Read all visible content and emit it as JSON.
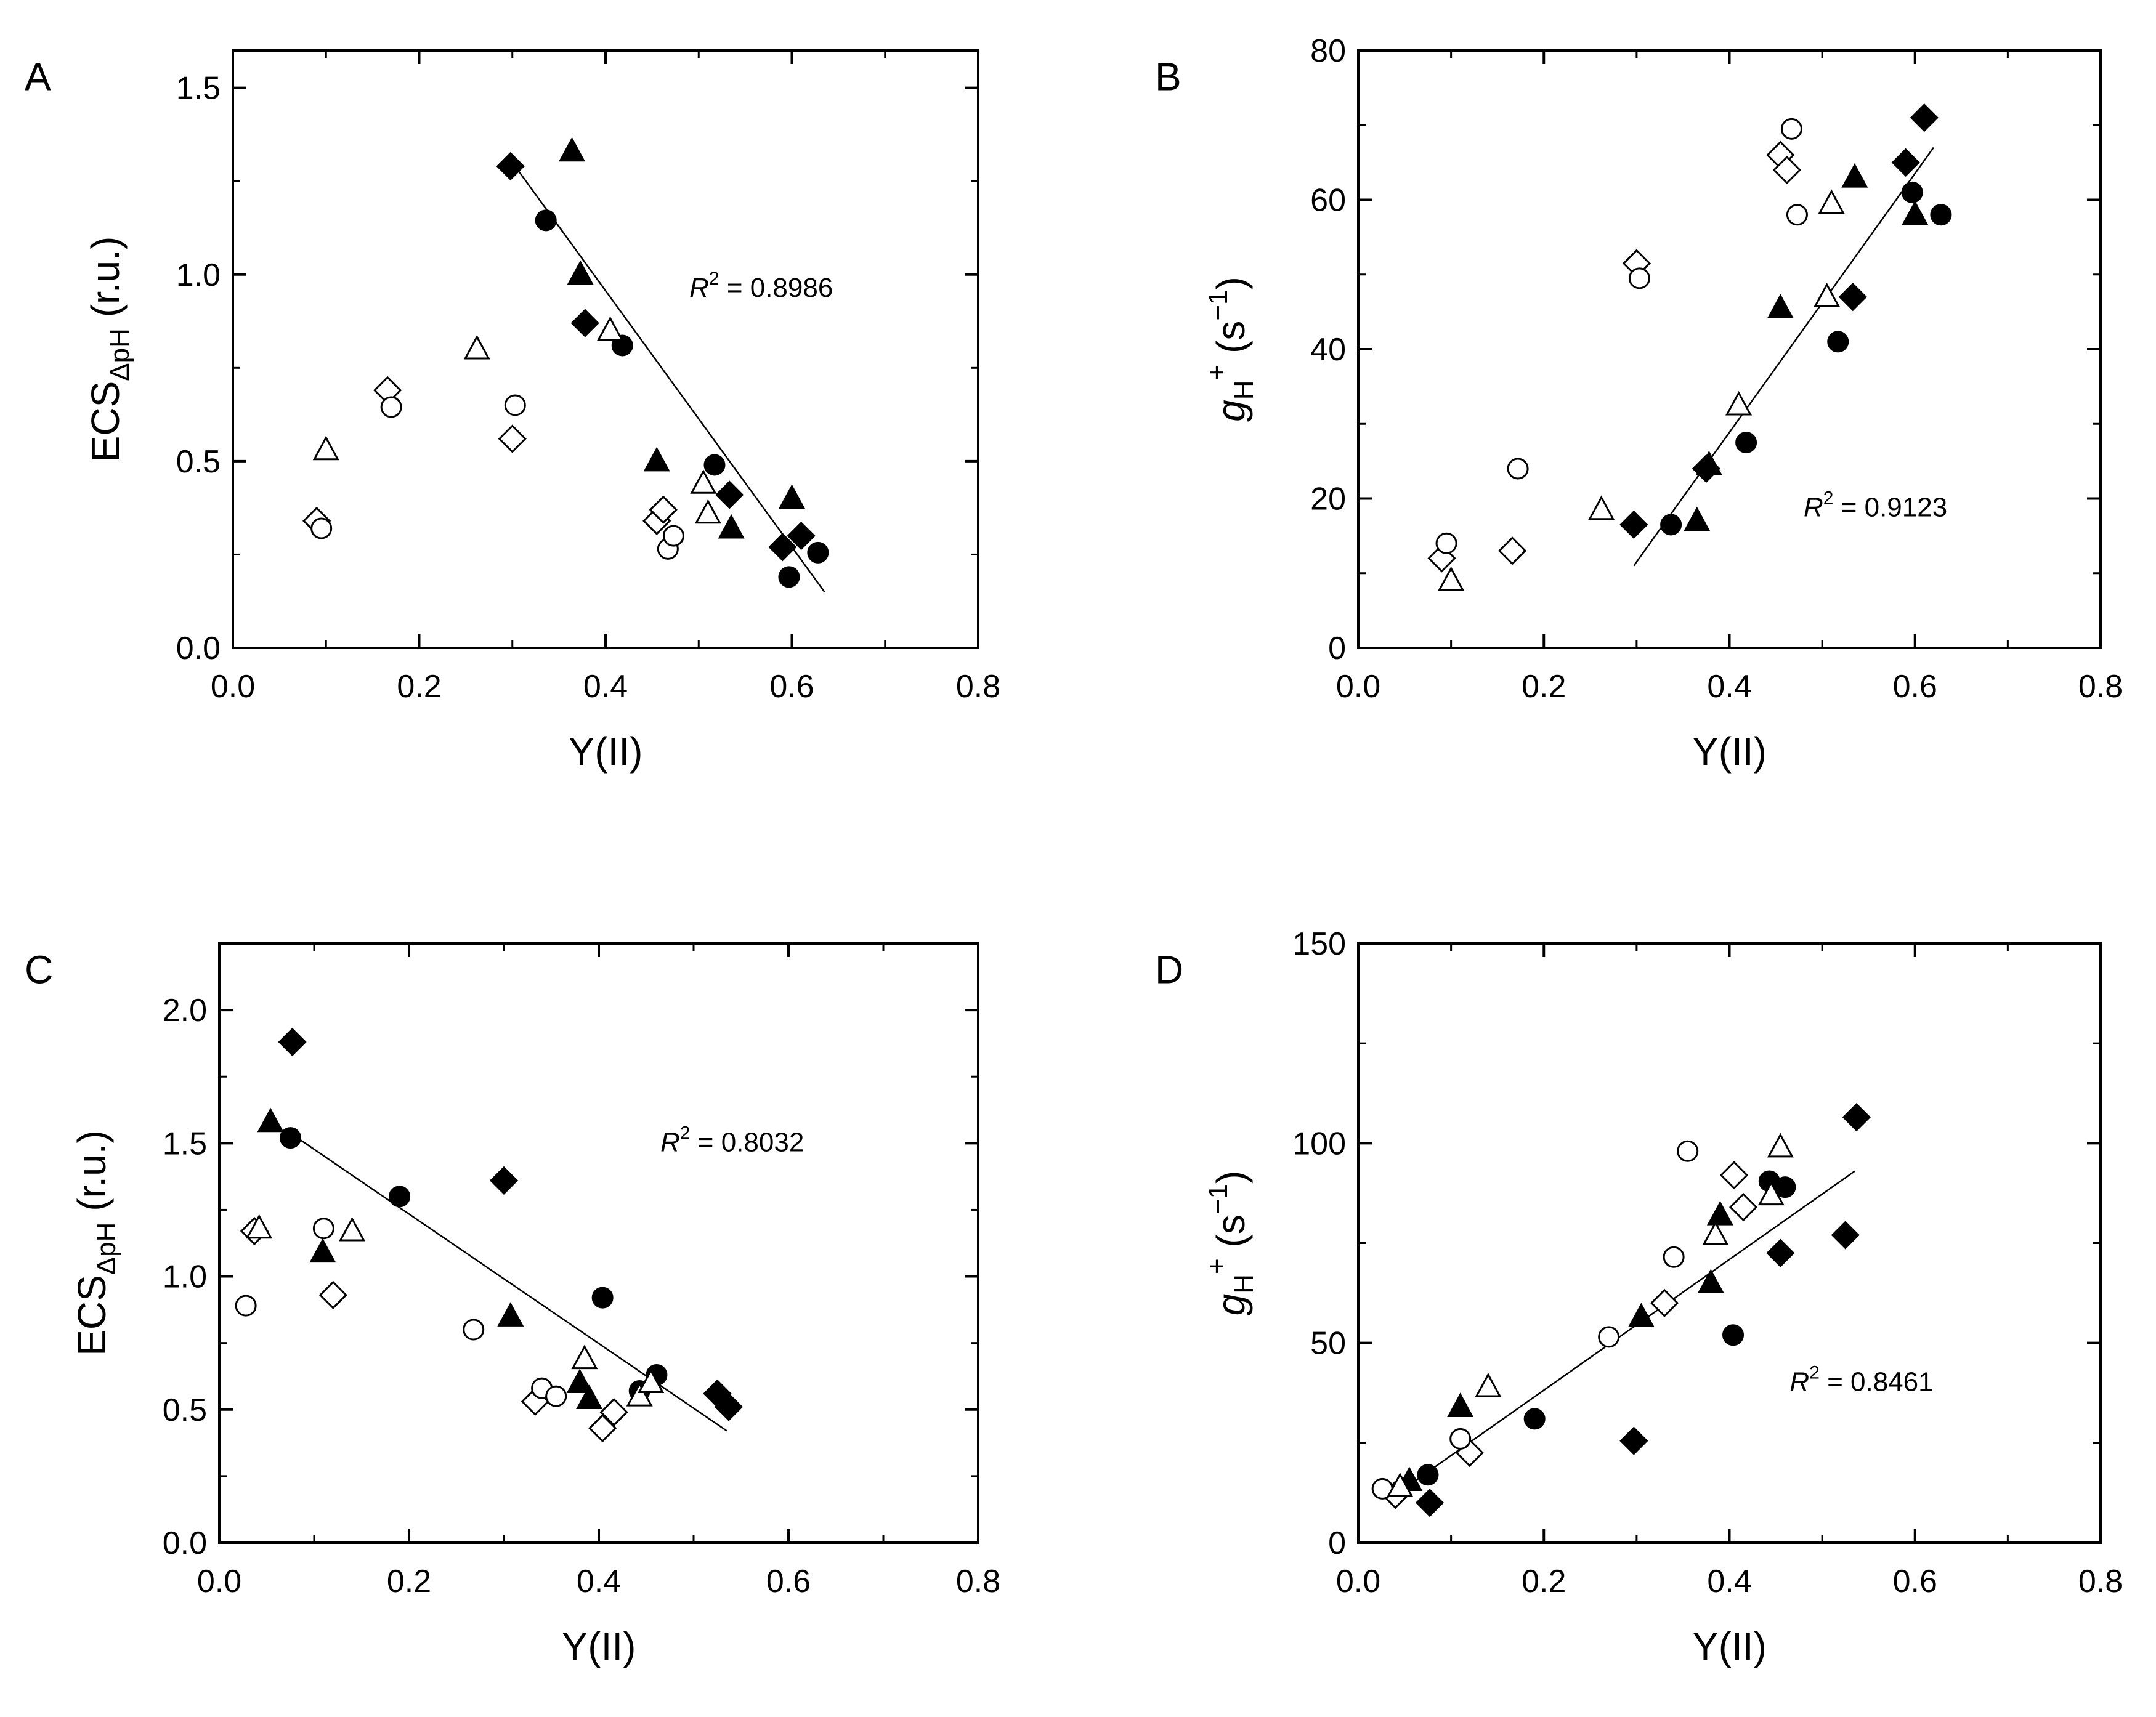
{
  "figure": {
    "markers": {
      "filled_diamond": "#000000",
      "filled_circle": "#000000",
      "filled_triangle": "#000000",
      "open_color": "#ffffff"
    }
  },
  "chart_data": [
    {
      "type": "scatter",
      "panel_label": "A",
      "xlabel": "Y(II)",
      "ylabel": {
        "main": "ECS",
        "sub": "ΔpH",
        "unit": " (r.u.)"
      },
      "xlim": [
        0.0,
        0.8
      ],
      "ylim": [
        0.0,
        1.6
      ],
      "xticks": [
        "0.0",
        "0.2",
        "0.4",
        "0.6",
        "0.8"
      ],
      "yticks": [
        "0.0",
        "0.5",
        "1.0",
        "1.5"
      ],
      "xtick_values": [
        0.0,
        0.2,
        0.4,
        0.6,
        0.8
      ],
      "ytick_values": [
        0.0,
        0.5,
        1.0,
        1.5
      ],
      "annotation": {
        "label": "R",
        "sup": "2",
        "value": "0.8986",
        "x": 0.49,
        "y": 0.94
      },
      "fit_line": {
        "x": [
          0.3,
          0.635
        ],
        "y": [
          1.3,
          0.15
        ]
      },
      "series": [
        {
          "name": "filled diamond",
          "marker": "diamond",
          "filled": true,
          "x": [
            0.298,
            0.378,
            0.533,
            0.59,
            0.61
          ],
          "y": [
            1.29,
            0.87,
            0.41,
            0.27,
            0.3
          ]
        },
        {
          "name": "filled circle",
          "marker": "circle",
          "filled": true,
          "x": [
            0.336,
            0.418,
            0.517,
            0.597,
            0.628
          ],
          "y": [
            1.145,
            0.81,
            0.49,
            0.19,
            0.255
          ]
        },
        {
          "name": "filled triangle",
          "marker": "triangle",
          "filled": true,
          "x": [
            0.364,
            0.373,
            0.455,
            0.535,
            0.6
          ],
          "y": [
            1.33,
            1.0,
            0.5,
            0.32,
            0.4
          ]
        },
        {
          "name": "open diamond",
          "marker": "diamond",
          "filled": false,
          "x": [
            0.09,
            0.166,
            0.3,
            0.455,
            0.462
          ],
          "y": [
            0.34,
            0.69,
            0.56,
            0.34,
            0.37
          ]
        },
        {
          "name": "open circle",
          "marker": "circle",
          "filled": false,
          "x": [
            0.095,
            0.17,
            0.303,
            0.467,
            0.473
          ],
          "y": [
            0.32,
            0.645,
            0.65,
            0.265,
            0.3
          ]
        },
        {
          "name": "open triangle",
          "marker": "triangle",
          "filled": false,
          "x": [
            0.1,
            0.262,
            0.405,
            0.505,
            0.51
          ],
          "y": [
            0.53,
            0.8,
            0.85,
            0.44,
            0.36
          ]
        }
      ]
    },
    {
      "type": "scatter",
      "panel_label": "B",
      "xlabel": "Y(II)",
      "ylabel": {
        "main": "g",
        "sub": "H",
        "sup": "+",
        "unit": " (s",
        "unit_sup": "−1",
        "unit_end": ")"
      },
      "xlim": [
        0.0,
        0.8
      ],
      "ylim": [
        0,
        80
      ],
      "xticks": [
        "0.0",
        "0.2",
        "0.4",
        "0.6",
        "0.8"
      ],
      "yticks": [
        "0",
        "20",
        "40",
        "60",
        "80"
      ],
      "xtick_values": [
        0.0,
        0.2,
        0.4,
        0.6,
        0.8
      ],
      "ytick_values": [
        0,
        20,
        40,
        60,
        80
      ],
      "annotation": {
        "label": "R",
        "sup": "2",
        "value": "0.9123",
        "x": 0.48,
        "y": 17.6
      },
      "fit_line": {
        "x": [
          0.297,
          0.62
        ],
        "y": [
          11,
          67
        ]
      },
      "series": [
        {
          "name": "filled diamond",
          "marker": "diamond",
          "filled": true,
          "x": [
            0.297,
            0.375,
            0.533,
            0.59,
            0.61
          ],
          "y": [
            16.5,
            24,
            47,
            65,
            71
          ]
        },
        {
          "name": "filled circle",
          "marker": "circle",
          "filled": true,
          "x": [
            0.337,
            0.418,
            0.517,
            0.597,
            0.628
          ],
          "y": [
            16.5,
            27.5,
            41,
            61,
            58
          ]
        },
        {
          "name": "filled triangle",
          "marker": "triangle",
          "filled": true,
          "x": [
            0.365,
            0.378,
            0.455,
            0.535,
            0.6
          ],
          "y": [
            17,
            24.5,
            45.5,
            63,
            58
          ]
        },
        {
          "name": "open diamond",
          "marker": "diamond",
          "filled": false,
          "x": [
            0.09,
            0.166,
            0.3,
            0.455,
            0.462
          ],
          "y": [
            12,
            13,
            51.5,
            66,
            64
          ]
        },
        {
          "name": "open circle",
          "marker": "circle",
          "filled": false,
          "x": [
            0.095,
            0.172,
            0.303,
            0.467,
            0.473
          ],
          "y": [
            14,
            24,
            49.5,
            69.5,
            58
          ]
        },
        {
          "name": "open triangle",
          "marker": "triangle",
          "filled": false,
          "x": [
            0.1,
            0.262,
            0.41,
            0.505,
            0.51
          ],
          "y": [
            9,
            18.5,
            32.5,
            47,
            59.5
          ]
        }
      ]
    },
    {
      "type": "scatter",
      "panel_label": "C",
      "xlabel": "Y(II)",
      "ylabel": {
        "main": "ECS",
        "sub": "ΔpH",
        "unit": " (r.u.)"
      },
      "xlim": [
        0.0,
        0.8
      ],
      "ylim": [
        0.0,
        2.25
      ],
      "xticks": [
        "0.0",
        "0.2",
        "0.4",
        "0.6",
        "0.8"
      ],
      "yticks": [
        "0.0",
        "0.5",
        "1.0",
        "1.5",
        "2.0"
      ],
      "xtick_values": [
        0.0,
        0.2,
        0.4,
        0.6,
        0.8
      ],
      "ytick_values": [
        0.0,
        0.5,
        1.0,
        1.5,
        2.0
      ],
      "annotation": {
        "label": "R",
        "sup": "2",
        "value": "0.8032",
        "x": 0.465,
        "y": 1.47
      },
      "fit_line": {
        "x": [
          0.07,
          0.535
        ],
        "y": [
          1.55,
          0.42
        ]
      },
      "series": [
        {
          "name": "filled diamond",
          "marker": "diamond",
          "filled": true,
          "x": [
            0.077,
            0.3,
            0.525,
            0.537
          ],
          "y": [
            1.88,
            1.36,
            0.56,
            0.51
          ]
        },
        {
          "name": "filled circle",
          "marker": "circle",
          "filled": true,
          "x": [
            0.075,
            0.19,
            0.404,
            0.443,
            0.461
          ],
          "y": [
            1.52,
            1.3,
            0.92,
            0.57,
            0.63
          ]
        },
        {
          "name": "filled triangle",
          "marker": "triangle",
          "filled": true,
          "x": [
            0.054,
            0.109,
            0.307,
            0.38,
            0.39
          ],
          "y": [
            1.58,
            1.09,
            0.85,
            0.6,
            0.54
          ]
        },
        {
          "name": "open diamond",
          "marker": "diamond",
          "filled": false,
          "x": [
            0.037,
            0.12,
            0.333,
            0.404,
            0.416
          ],
          "y": [
            1.17,
            0.93,
            0.53,
            0.43,
            0.49
          ]
        },
        {
          "name": "open circle",
          "marker": "circle",
          "filled": false,
          "x": [
            0.028,
            0.11,
            0.268,
            0.34,
            0.355
          ],
          "y": [
            0.89,
            1.18,
            0.8,
            0.58,
            0.55
          ]
        },
        {
          "name": "open triangle",
          "marker": "triangle",
          "filled": false,
          "x": [
            0.042,
            0.14,
            0.385,
            0.443,
            0.455
          ],
          "y": [
            1.18,
            1.17,
            0.69,
            0.55,
            0.6
          ]
        }
      ]
    },
    {
      "type": "scatter",
      "panel_label": "D",
      "xlabel": "Y(II)",
      "ylabel": {
        "main": "g",
        "sub": "H",
        "sup": "+",
        "unit": " (s",
        "unit_sup": "−1",
        "unit_end": ")"
      },
      "xlim": [
        0.0,
        0.8
      ],
      "ylim": [
        0,
        150
      ],
      "xticks": [
        "0.0",
        "0.2",
        "0.4",
        "0.6",
        "0.8"
      ],
      "yticks": [
        "0",
        "50",
        "100",
        "150"
      ],
      "xtick_values": [
        0.0,
        0.2,
        0.4,
        0.6,
        0.8
      ],
      "ytick_values": [
        0,
        50,
        100,
        150
      ],
      "annotation": {
        "label": "R",
        "sup": "2",
        "value": "0.8461",
        "x": 0.465,
        "y": 38
      },
      "fit_line": {
        "x": [
          0.04,
          0.535
        ],
        "y": [
          12,
          93
        ]
      },
      "series": [
        {
          "name": "filled diamond",
          "marker": "diamond",
          "filled": true,
          "x": [
            0.077,
            0.297,
            0.455,
            0.525,
            0.537
          ],
          "y": [
            10,
            25.5,
            72.5,
            77,
            106.5
          ]
        },
        {
          "name": "filled circle",
          "marker": "circle",
          "filled": true,
          "x": [
            0.075,
            0.19,
            0.404,
            0.443,
            0.46
          ],
          "y": [
            17,
            31,
            52,
            90.5,
            89
          ]
        },
        {
          "name": "filled triangle",
          "marker": "triangle",
          "filled": true,
          "x": [
            0.055,
            0.11,
            0.305,
            0.38,
            0.39
          ],
          "y": [
            15.5,
            34,
            56.5,
            65,
            82
          ]
        },
        {
          "name": "open diamond",
          "marker": "diamond",
          "filled": false,
          "x": [
            0.04,
            0.12,
            0.33,
            0.405,
            0.415
          ],
          "y": [
            12,
            22.5,
            60,
            92,
            84
          ]
        },
        {
          "name": "open circle",
          "marker": "circle",
          "filled": false,
          "x": [
            0.026,
            0.11,
            0.27,
            0.34,
            0.355
          ],
          "y": [
            13.5,
            26,
            51.5,
            71.5,
            98
          ]
        },
        {
          "name": "open triangle",
          "marker": "triangle",
          "filled": false,
          "x": [
            0.045,
            0.14,
            0.385,
            0.445,
            0.455
          ],
          "y": [
            14,
            39,
            77,
            87,
            99
          ]
        }
      ]
    }
  ]
}
